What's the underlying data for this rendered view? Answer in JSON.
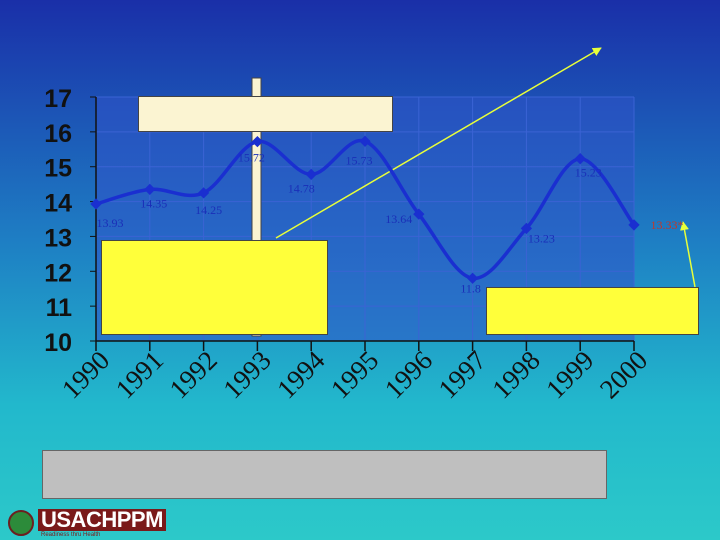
{
  "chart_data": {
    "type": "line",
    "x": [
      "1990",
      "1991",
      "1992",
      "1993",
      "1994",
      "1995",
      "1996",
      "1997",
      "1998",
      "1999",
      "2000"
    ],
    "series": [
      {
        "values": [
          13.93,
          14.35,
          14.25,
          15.72,
          14.78,
          15.73,
          13.64,
          11.8,
          13.23,
          15.23,
          13.33
        ],
        "data_labels": [
          "13.93",
          "14.35",
          "14.25",
          "15.72",
          "14.78",
          "15.73",
          "13.64",
          "11.8",
          "13.23",
          "15.23",
          "13.33*"
        ],
        "color": "#1a2fd0"
      }
    ],
    "y_ticks": [
      "10",
      "11",
      "12",
      "13",
      "14",
      "15",
      "16",
      "17"
    ],
    "ylim": [
      10,
      17
    ],
    "grid": true,
    "label_color": "#1a2fb8",
    "highlight_label_color": "#c0392b",
    "arrow_color": "#e8ff3a"
  },
  "logo": {
    "name": "USACHPPM",
    "tagline": "Readiness thru Health"
  },
  "colors": {
    "plot_area": "#2f54c8",
    "gridline": "#3b63d4",
    "axis": "#111111",
    "note_fill": "#ffff3a",
    "footer_fill": "#bfbfbf"
  }
}
